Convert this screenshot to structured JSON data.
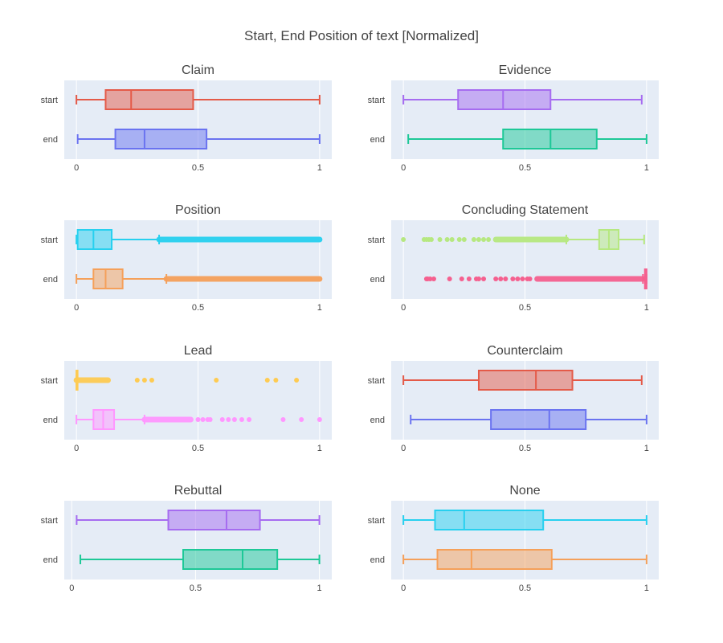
{
  "title": "Start, End Position of text [Normalized]",
  "colors": {
    "plot_bg": "#e5ecf6",
    "grid": "#ffffff",
    "text": "#444444"
  },
  "chart_data": [
    {
      "type": "box",
      "title": "Claim",
      "categories": [
        "start",
        "end"
      ],
      "x_ticks": [
        "0",
        "0.5",
        "1"
      ],
      "xlim": [
        -0.05,
        1.05
      ],
      "boxes": [
        {
          "name": "start",
          "color": "#e45a48",
          "min": 0.0,
          "q1": 0.12,
          "median": 0.225,
          "q3": 0.48,
          "max": 1.0,
          "outliers": []
        },
        {
          "name": "end",
          "color": "#6a73f0",
          "min": 0.005,
          "q1": 0.16,
          "median": 0.28,
          "q3": 0.535,
          "max": 1.0,
          "outliers": []
        }
      ]
    },
    {
      "type": "box",
      "title": "Evidence",
      "categories": [
        "start",
        "end"
      ],
      "x_ticks": [
        "0",
        "0.5",
        "1"
      ],
      "xlim": [
        -0.05,
        1.05
      ],
      "boxes": [
        {
          "name": "start",
          "color": "#a66cf0",
          "min": 0.0,
          "q1": 0.225,
          "median": 0.41,
          "q3": 0.605,
          "max": 0.98,
          "outliers": []
        },
        {
          "name": "end",
          "color": "#1ec897",
          "min": 0.02,
          "q1": 0.41,
          "median": 0.605,
          "q3": 0.795,
          "max": 1.0,
          "outliers": []
        }
      ]
    },
    {
      "type": "box",
      "title": "Position",
      "categories": [
        "start",
        "end"
      ],
      "x_ticks": [
        "0",
        "0.5",
        "1"
      ],
      "xlim": [
        -0.05,
        1.05
      ],
      "boxes": [
        {
          "name": "start",
          "color": "#27d0ef",
          "min": 0.0,
          "q1": 0.005,
          "median": 0.07,
          "q3": 0.145,
          "max": 0.34,
          "outliers": [],
          "outlier_band": [
            0.34,
            1.0
          ]
        },
        {
          "name": "end",
          "color": "#f5a05a",
          "min": 0.0,
          "q1": 0.07,
          "median": 0.12,
          "q3": 0.19,
          "max": 0.37,
          "outliers": [],
          "outlier_band": [
            0.37,
            1.0
          ]
        }
      ]
    },
    {
      "type": "box",
      "title": "Concluding Statement",
      "categories": [
        "start",
        "end"
      ],
      "x_ticks": [
        "0",
        "0.5",
        "1"
      ],
      "xlim": [
        -0.05,
        1.05
      ],
      "boxes": [
        {
          "name": "start",
          "color": "#b6e880",
          "min": 0.67,
          "q1": 0.805,
          "median": 0.845,
          "q3": 0.885,
          "max": 0.99,
          "outliers": [
            0.0,
            0.085,
            0.095,
            0.105,
            0.115,
            0.15,
            0.18,
            0.2,
            0.23,
            0.25,
            0.29,
            0.31,
            0.33,
            0.35
          ],
          "outlier_band": [
            0.38,
            0.67
          ]
        },
        {
          "name": "end",
          "color": "#f5608f",
          "min": 0.985,
          "q1": 0.993,
          "median": 0.997,
          "q3": 1.0,
          "max": 1.0,
          "outliers": [
            0.095,
            0.1,
            0.11,
            0.125,
            0.19,
            0.24,
            0.27,
            0.3,
            0.31,
            0.33,
            0.38,
            0.4,
            0.42,
            0.45,
            0.47,
            0.49,
            0.51,
            0.52
          ],
          "outlier_band": [
            0.55,
            0.985
          ]
        }
      ]
    },
    {
      "type": "box",
      "title": "Lead",
      "categories": [
        "start",
        "end"
      ],
      "x_ticks": [
        "0",
        "0.5",
        "1"
      ],
      "xlim": [
        -0.05,
        1.05
      ],
      "boxes": [
        {
          "name": "start",
          "color": "#fecb52",
          "min": 0.0,
          "q1": 0.0,
          "median": 0.0,
          "q3": 0.0,
          "max": 0.0,
          "outliers": [
            0.25,
            0.28,
            0.31,
            0.575,
            0.785,
            0.82,
            0.905
          ],
          "outlier_band": [
            0.0,
            0.13
          ]
        },
        {
          "name": "end",
          "color": "#ff97ff",
          "min": 0.0,
          "q1": 0.07,
          "median": 0.11,
          "q3": 0.155,
          "max": 0.28,
          "outliers": [
            0.5,
            0.52,
            0.54,
            0.55,
            0.6,
            0.625,
            0.65,
            0.68,
            0.71,
            0.85,
            0.925,
            1.0
          ],
          "outlier_band": [
            0.28,
            0.47
          ]
        }
      ]
    },
    {
      "type": "box",
      "title": "Counterclaim",
      "categories": [
        "start",
        "end"
      ],
      "x_ticks": [
        "0",
        "0.5",
        "1"
      ],
      "xlim": [
        -0.05,
        1.05
      ],
      "boxes": [
        {
          "name": "start",
          "color": "#e45a48",
          "min": 0.0,
          "q1": 0.31,
          "median": 0.545,
          "q3": 0.695,
          "max": 0.98,
          "outliers": []
        },
        {
          "name": "end",
          "color": "#6a73f0",
          "min": 0.03,
          "q1": 0.36,
          "median": 0.6,
          "q3": 0.75,
          "max": 1.0,
          "outliers": []
        }
      ]
    },
    {
      "type": "box",
      "title": "Rebuttal",
      "categories": [
        "start",
        "end"
      ],
      "x_ticks": [
        "0",
        "0.5",
        "1"
      ],
      "xlim": [
        -0.03,
        1.05
      ],
      "boxes": [
        {
          "name": "start",
          "color": "#a66cf0",
          "min": 0.02,
          "q1": 0.39,
          "median": 0.625,
          "q3": 0.76,
          "max": 1.0,
          "outliers": []
        },
        {
          "name": "end",
          "color": "#1ec897",
          "min": 0.035,
          "q1": 0.45,
          "median": 0.69,
          "q3": 0.83,
          "max": 1.0,
          "outliers": []
        }
      ]
    },
    {
      "type": "box",
      "title": "None",
      "categories": [
        "start",
        "end"
      ],
      "x_ticks": [
        "0",
        "0.5",
        "1"
      ],
      "xlim": [
        -0.05,
        1.05
      ],
      "boxes": [
        {
          "name": "start",
          "color": "#27d0ef",
          "min": 0.0,
          "q1": 0.13,
          "median": 0.25,
          "q3": 0.575,
          "max": 1.0,
          "outliers": []
        },
        {
          "name": "end",
          "color": "#f5a05a",
          "min": 0.0,
          "q1": 0.14,
          "median": 0.28,
          "q3": 0.61,
          "max": 1.0,
          "outliers": []
        }
      ]
    }
  ]
}
